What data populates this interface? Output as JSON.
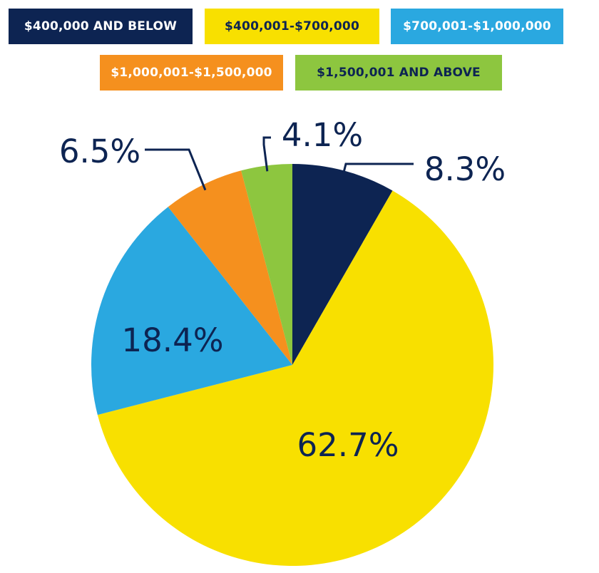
{
  "chart_data": {
    "type": "pie",
    "categories": [
      "$400,000 AND BELOW",
      "$400,001-$700,000",
      "$700,001-$1,000,000",
      "$1,000,001-$1,500,000",
      "$1,500,001 AND ABOVE"
    ],
    "values": [
      8.3,
      62.7,
      18.4,
      6.5,
      4.1
    ],
    "value_labels": [
      "8.3%",
      "62.7%",
      "18.4%",
      "6.5%",
      "4.1%"
    ],
    "colors": [
      "#0d2452",
      "#f8e000",
      "#2aa8e0",
      "#f5901e",
      "#8dc63f"
    ],
    "legend_text_colors": [
      "#ffffff",
      "#0d2452",
      "#ffffff",
      "#ffffff",
      "#0d2452"
    ],
    "legend_placement": "top",
    "start_angle": "12 o'clock",
    "direction": "clockwise"
  }
}
